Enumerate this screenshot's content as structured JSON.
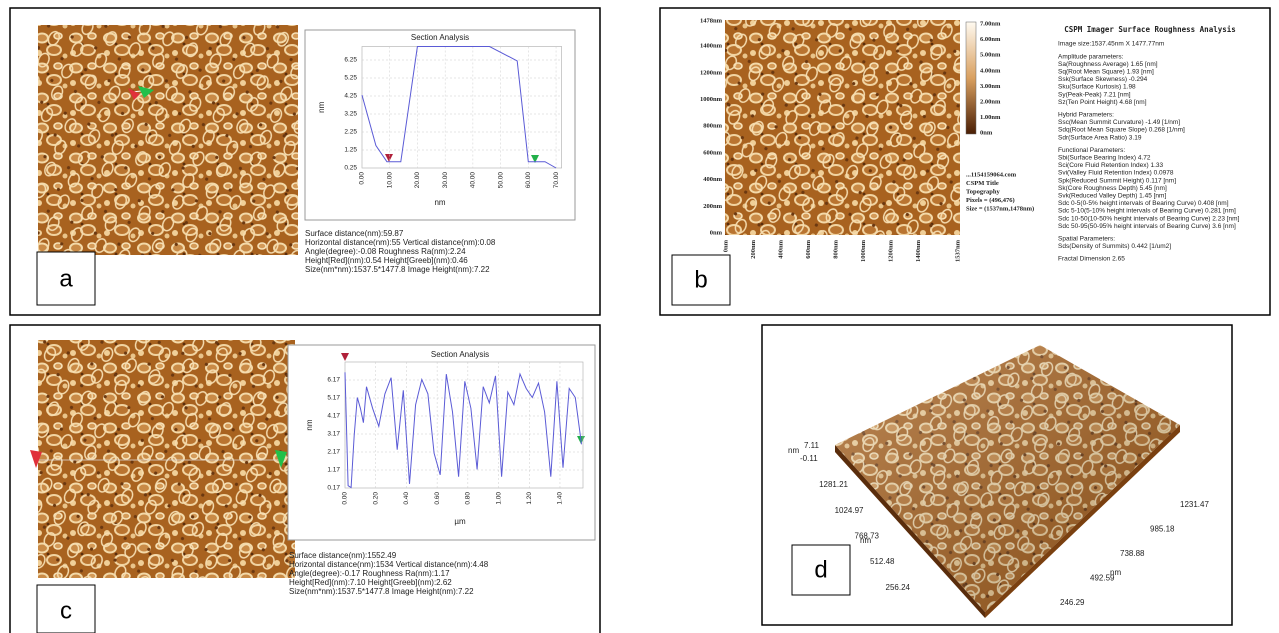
{
  "panels": {
    "a": {
      "label": "a",
      "stats": [
        "Surface distance(nm):59.87",
        "Horizontal distance(nm):55   Vertical distance(nm):0.08",
        "Angle(degree):-0.08          Roughness Ra(nm):2.24",
        "Height[Red](nm):0.54        Height[Greeb](nm):0.46",
        "Size(nm*nm):1537.5*1477.8        Image Height(nm):7.22"
      ]
    },
    "b": {
      "label": "b",
      "y_labels": [
        "0nm",
        "200nm",
        "400nm",
        "600nm",
        "800nm",
        "1000nm",
        "1200nm",
        "1400nm",
        "1478nm"
      ],
      "x_labels": [
        "0nm",
        "200nm",
        "400nm",
        "600nm",
        "800nm",
        "1000nm",
        "1200nm",
        "1400nm",
        "1537nm"
      ],
      "colorbar_labels": [
        "7.00nm",
        "6.00nm",
        "5.00nm",
        "4.00nm",
        "3.00nm",
        "2.00nm",
        "1.00nm",
        "0nm"
      ],
      "info": [
        "...1154159064.com",
        "CSPM Title",
        "Topography",
        "Pixels = (496,476)",
        "Size = (1537nm,1478nm)"
      ],
      "title": "CSPM Imager Surface Roughness Analysis",
      "parameters": [
        [
          "Image size:1537.45nm X 1477.77nm"
        ],
        [
          "Amplitude parameters:",
          "Sa(Roughness Average)   1.65  [nm]",
          "Sq(Root Mean Square)   1.93  [nm]",
          "Ssk(Surface Skewness)   -0.294",
          "Sku(Surface Kurtosis)   1.98",
          "Sy(Peak-Peak)   7.21  [nm]",
          "Sz(Ten Point Height)   4.68  [nm]"
        ],
        [
          "Hybrid Parameters:",
          "Ssc(Mean Summit Curvature)   -1.49  [1/nm]",
          "Sdq(Root Mean Square Slope)   0.268  [1/nm]",
          "Sdr(Surface Area Ratio)   3.19"
        ],
        [
          "Functional Parameters:",
          "Sbi(Surface Bearing Index)   4.72",
          "Sci(Core Fluid Retention Index)   1.33",
          "Svi(Valley Fluid Retention Index)   0.0978",
          "Spk(Reduced Summit Height)   0.117 [nm]",
          "Sk(Core Roughness Depth)   5.45  [nm]",
          "Svk(Reduced Valley Depth)   1.45  [nm]",
          "Sdc 0-5(0-5% height intervals of Bearing Curve)   0.408 [nm]",
          "Sdc 5-10(5-10% height intervals of Bearing Curve)   0.281 [nm]",
          "Sdc 10-50(10-50% height intervals of Bearing Curve)   2.23  [nm]",
          "Sdc 50-95(50-95% height intervals of Bearing Curve)   3.6  [nm]"
        ],
        [
          "Spatial Parameters:",
          "Sds(Density of Summits)   0.442 [1/um2]"
        ],
        [
          "Fractal Dimension   2.65"
        ]
      ]
    },
    "c": {
      "label": "c",
      "stats": [
        "Surface distance(nm):1552.49",
        "Horizontal distance(nm):1534   Vertical distance(nm):4.48",
        "Angle(degree):-0.17          Roughness Ra(nm):1.17",
        "Height[Red](nm):7.10        Height[Greeb](nm):2.62",
        "Size(nm*nm):1537.5*1477.8        Image Height(nm):7.22"
      ]
    },
    "d": {
      "label": "d",
      "z_unit": "nm",
      "z_labels": [
        "7.11",
        "-0.11"
      ],
      "left_axis": [
        "1281.21",
        "1024.97",
        "768.73",
        "512.48",
        "256.24"
      ],
      "left_unit": "nm",
      "right_axis": [
        "1231.47",
        "985.18",
        "738.88",
        "492.59",
        "246.29"
      ],
      "right_unit": "nm"
    }
  },
  "chart_data": [
    {
      "type": "line",
      "title": "Section Analysis",
      "x_label": "nm",
      "y_label": "nm",
      "color": "#5b5bd6",
      "x": [
        0,
        5,
        9,
        14,
        20,
        30,
        40,
        46,
        56,
        60,
        66,
        70
      ],
      "values": [
        4.3,
        1.5,
        0.6,
        0.6,
        7.0,
        7.0,
        7.0,
        7.0,
        6.2,
        0.6,
        0.6,
        0.25
      ],
      "xlim": [
        0,
        72
      ],
      "ylim": [
        0.25,
        7.0
      ],
      "xticks": [
        {
          "value": 0,
          "label": "0.00"
        },
        {
          "value": 10,
          "label": "10.00"
        },
        {
          "value": 20,
          "label": "20.00"
        },
        {
          "value": 30,
          "label": "30.00"
        },
        {
          "value": 40,
          "label": "40.00"
        },
        {
          "value": 50,
          "label": "50.00"
        },
        {
          "value": 60,
          "label": "60.00"
        },
        {
          "value": 70,
          "label": "70.00"
        }
      ],
      "yticks": [
        0.25,
        1.25,
        2.25,
        3.25,
        4.25,
        5.25,
        6.25
      ],
      "grid": true
    },
    {
      "type": "line",
      "title": "Section Analysis",
      "x_label": "µm",
      "y_label": "nm",
      "color": "#5b5bd6",
      "x": [
        0,
        0.02,
        0.04,
        0.06,
        0.08,
        0.1,
        0.12,
        0.14,
        0.18,
        0.22,
        0.26,
        0.3,
        0.34,
        0.38,
        0.42,
        0.46,
        0.5,
        0.54,
        0.58,
        0.62,
        0.66,
        0.7,
        0.74,
        0.78,
        0.82,
        0.86,
        0.9,
        0.94,
        0.98,
        1.02,
        1.06,
        1.1,
        1.14,
        1.18,
        1.22,
        1.26,
        1.3,
        1.34,
        1.38,
        1.42,
        1.46,
        1.5,
        1.54
      ],
      "values": [
        6.6,
        0.3,
        0.2,
        3.1,
        5.2,
        4.6,
        3.8,
        5.8,
        4.6,
        3.6,
        5.4,
        6.3,
        2.3,
        5.6,
        0.4,
        4.8,
        6.2,
        5.4,
        2.1,
        0.9,
        6.5,
        4.4,
        0.8,
        6.1,
        4.6,
        1.2,
        5.8,
        4.9,
        6.4,
        0.8,
        5.5,
        4.8,
        6.5,
        5.7,
        5.2,
        6.0,
        4.4,
        0.8,
        6.1,
        1.3,
        5.7,
        5.2,
        2.6
      ],
      "xlim": [
        0,
        1.55
      ],
      "ylim": [
        0.17,
        7.17
      ],
      "xticks": [
        {
          "value": 0,
          "label": "0.00"
        },
        {
          "value": 0.2,
          "label": "0.20"
        },
        {
          "value": 0.4,
          "label": "0.40"
        },
        {
          "value": 0.6,
          "label": "0.60"
        },
        {
          "value": 0.8,
          "label": "0.80"
        },
        {
          "value": 1,
          "label": "1.00"
        },
        {
          "value": 1.2,
          "label": "1.20"
        },
        {
          "value": 1.4,
          "label": "1.40"
        }
      ],
      "yticks": [
        0.17,
        1.17,
        2.17,
        3.17,
        4.17,
        5.17,
        6.17
      ],
      "grid": true
    }
  ]
}
